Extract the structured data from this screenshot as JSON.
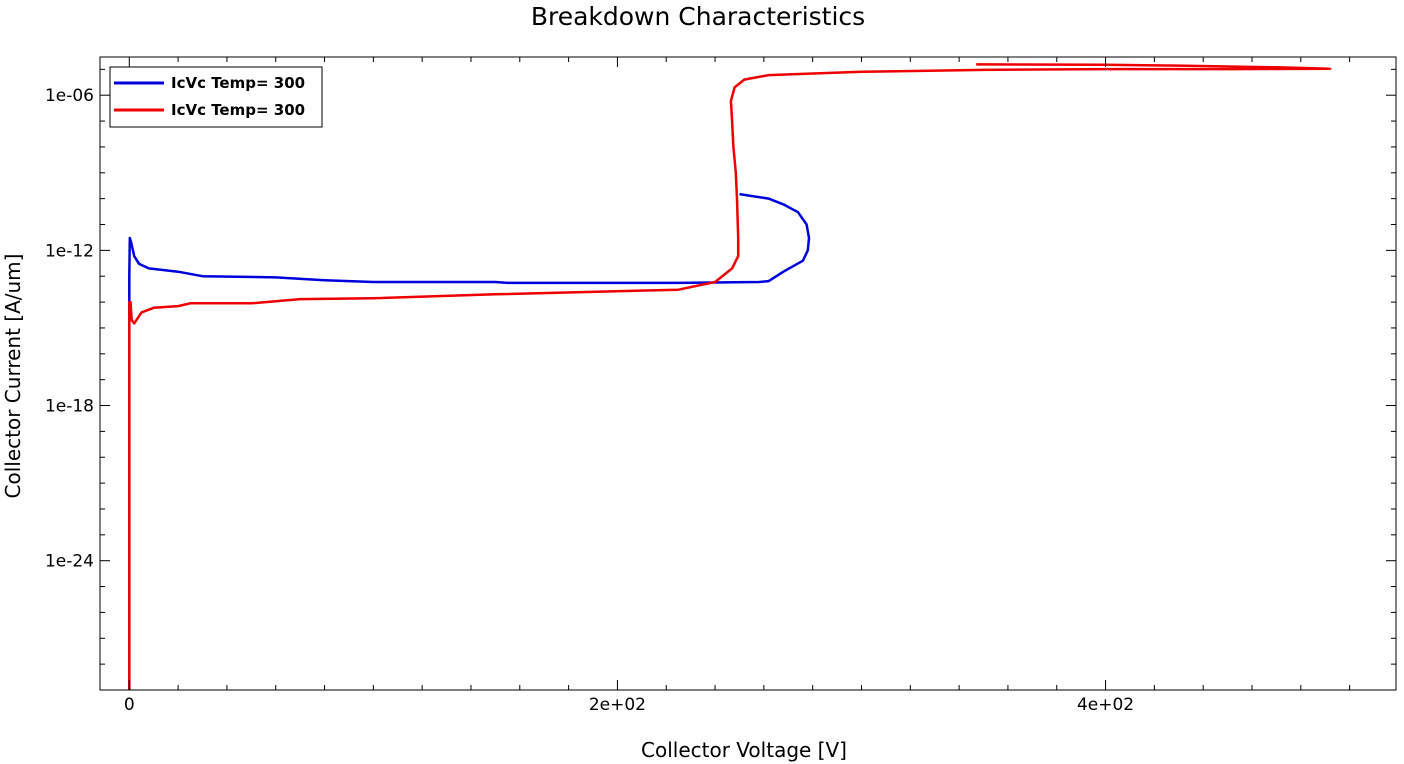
{
  "chart_data": {
    "type": "line",
    "title": "Breakdown Characteristics",
    "xlabel": "Collector Voltage [V]",
    "ylabel": "Collector Current [A/um]",
    "y_scale": "log",
    "xlim": [
      -12,
      519
    ],
    "ylim": [
      1e-29,
      3e-05
    ],
    "x_ticks": [
      {
        "value": 0,
        "label": "0"
      },
      {
        "value": 200,
        "label": "2e+02"
      },
      {
        "value": 400,
        "label": "4e+02"
      }
    ],
    "y_ticks": [
      {
        "value": 1e-24,
        "label": "1e-24"
      },
      {
        "value": 1e-18,
        "label": "1e-18"
      },
      {
        "value": 1e-12,
        "label": "1e-12"
      },
      {
        "value": 1e-06,
        "label": "1e-06"
      }
    ],
    "grid": false,
    "legend_position": "top-left",
    "series": [
      {
        "name": "IcVc Temp= 300",
        "color": "#0000dd",
        "points": [
          [
            0,
            1e-29
          ],
          [
            0,
            1e-13
          ],
          [
            0.2,
            3e-12
          ],
          [
            0.8,
            2e-12
          ],
          [
            2,
            6e-13
          ],
          [
            4,
            3e-13
          ],
          [
            8,
            2e-13
          ],
          [
            20,
            1.5e-13
          ],
          [
            30,
            1e-13
          ],
          [
            60,
            9e-14
          ],
          [
            80,
            7e-14
          ],
          [
            100,
            6e-14
          ],
          [
            150,
            6e-14
          ],
          [
            155,
            5.5e-14
          ],
          [
            200,
            5.5e-14
          ],
          [
            225,
            5.5e-14
          ],
          [
            258,
            6e-14
          ],
          [
            262,
            6.5e-14
          ],
          [
            268,
            1.5e-13
          ],
          [
            276,
            4e-13
          ],
          [
            278,
            1e-12
          ],
          [
            278.5,
            3e-12
          ],
          [
            277.5,
            1e-11
          ],
          [
            274,
            3e-11
          ],
          [
            268,
            6e-11
          ],
          [
            262,
            1e-10
          ],
          [
            250,
            1.5e-10
          ]
        ]
      },
      {
        "name": "IcVc Temp= 300",
        "color": "#ee0000",
        "points": [
          [
            0,
            1e-29
          ],
          [
            0,
            1e-14
          ],
          [
            0.5,
            1e-14
          ],
          [
            1,
            2e-15
          ],
          [
            2,
            1.5e-15
          ],
          [
            5,
            4e-15
          ],
          [
            10,
            6e-15
          ],
          [
            20,
            7e-15
          ],
          [
            25,
            9e-15
          ],
          [
            50,
            9e-15
          ],
          [
            70,
            1.3e-14
          ],
          [
            100,
            1.4e-14
          ],
          [
            150,
            2e-14
          ],
          [
            225,
            3e-14
          ],
          [
            240,
            6e-14
          ],
          [
            247,
            2e-13
          ],
          [
            249.5,
            6e-13
          ],
          [
            249.5,
            3e-12
          ],
          [
            249,
            1e-10
          ],
          [
            248.5,
            1e-09
          ],
          [
            247.5,
            1e-08
          ],
          [
            247,
            1e-07
          ],
          [
            246.5,
            6e-07
          ],
          [
            248,
            2e-06
          ],
          [
            252,
            4e-06
          ],
          [
            262,
            6e-06
          ],
          [
            300,
            8e-06
          ],
          [
            350,
            9.5e-06
          ],
          [
            400,
            1.02e-05
          ],
          [
            450,
            1.02e-05
          ],
          [
            492,
            1.05e-05
          ],
          [
            470,
            1.2e-05
          ],
          [
            430,
            1.4e-05
          ],
          [
            400,
            1.5e-05
          ],
          [
            347,
            1.55e-05
          ]
        ]
      }
    ]
  }
}
